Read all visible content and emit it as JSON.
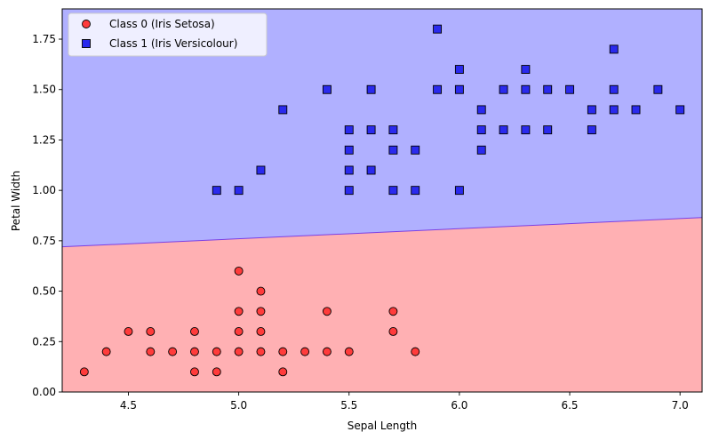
{
  "chart_data": {
    "type": "scatter",
    "title": "",
    "xlabel": "Sepal Length",
    "ylabel": "Petal Width",
    "xlim": [
      4.2,
      7.1
    ],
    "ylim": [
      0.0,
      1.9
    ],
    "xticks": [
      4.5,
      5.0,
      5.5,
      6.0,
      6.5,
      7.0
    ],
    "xtick_labels": [
      "4.5",
      "5.0",
      "5.5",
      "6.0",
      "6.5",
      "7.0"
    ],
    "yticks": [
      0.0,
      0.25,
      0.5,
      0.75,
      1.0,
      1.25,
      1.5,
      1.75
    ],
    "ytick_labels": [
      "0.00",
      "0.25",
      "0.50",
      "0.75",
      "1.00",
      "1.25",
      "1.50",
      "1.75"
    ],
    "legend_position": "top-left",
    "grid": false,
    "decision_boundary": {
      "line": [
        [
          4.2,
          0.72
        ],
        [
          7.1,
          0.865
        ]
      ],
      "region_above_class": "Class 1 (Iris Versicolour)",
      "region_below_class": "Class 0 (Iris Setosa)",
      "region_above_color": "#b0b0ff",
      "region_below_color": "#ffb0b3",
      "line_color": "#7b3fe4"
    },
    "series": [
      {
        "name": "Class 0 (Iris Setosa)",
        "marker": "circle",
        "color": "#ff3b3b",
        "edge_color": "#000000",
        "points": [
          [
            4.3,
            0.1
          ],
          [
            4.4,
            0.2
          ],
          [
            4.5,
            0.3
          ],
          [
            4.6,
            0.2
          ],
          [
            4.6,
            0.3
          ],
          [
            4.7,
            0.2
          ],
          [
            4.8,
            0.1
          ],
          [
            4.8,
            0.2
          ],
          [
            4.8,
            0.3
          ],
          [
            4.9,
            0.1
          ],
          [
            4.9,
            0.2
          ],
          [
            5.0,
            0.2
          ],
          [
            5.0,
            0.3
          ],
          [
            5.0,
            0.4
          ],
          [
            5.0,
            0.6
          ],
          [
            5.1,
            0.2
          ],
          [
            5.1,
            0.3
          ],
          [
            5.1,
            0.4
          ],
          [
            5.1,
            0.5
          ],
          [
            5.2,
            0.1
          ],
          [
            5.2,
            0.2
          ],
          [
            5.3,
            0.2
          ],
          [
            5.4,
            0.2
          ],
          [
            5.4,
            0.4
          ],
          [
            5.5,
            0.2
          ],
          [
            5.7,
            0.3
          ],
          [
            5.7,
            0.4
          ],
          [
            5.8,
            0.2
          ]
        ]
      },
      {
        "name": "Class 1 (Iris Versicolour)",
        "marker": "square",
        "color": "#2a2aee",
        "edge_color": "#000000",
        "points": [
          [
            4.9,
            1.0
          ],
          [
            5.0,
            1.0
          ],
          [
            5.1,
            1.1
          ],
          [
            5.2,
            1.4
          ],
          [
            5.4,
            1.5
          ],
          [
            5.5,
            1.0
          ],
          [
            5.5,
            1.1
          ],
          [
            5.5,
            1.2
          ],
          [
            5.5,
            1.3
          ],
          [
            5.6,
            1.1
          ],
          [
            5.6,
            1.3
          ],
          [
            5.6,
            1.5
          ],
          [
            5.7,
            1.0
          ],
          [
            5.7,
            1.2
          ],
          [
            5.7,
            1.3
          ],
          [
            5.8,
            1.0
          ],
          [
            5.8,
            1.2
          ],
          [
            5.9,
            1.5
          ],
          [
            5.9,
            1.8
          ],
          [
            6.0,
            1.0
          ],
          [
            6.0,
            1.5
          ],
          [
            6.0,
            1.6
          ],
          [
            6.1,
            1.2
          ],
          [
            6.1,
            1.3
          ],
          [
            6.1,
            1.4
          ],
          [
            6.2,
            1.3
          ],
          [
            6.2,
            1.5
          ],
          [
            6.3,
            1.3
          ],
          [
            6.3,
            1.5
          ],
          [
            6.3,
            1.6
          ],
          [
            6.4,
            1.3
          ],
          [
            6.4,
            1.5
          ],
          [
            6.5,
            1.5
          ],
          [
            6.6,
            1.3
          ],
          [
            6.6,
            1.4
          ],
          [
            6.7,
            1.4
          ],
          [
            6.7,
            1.5
          ],
          [
            6.7,
            1.7
          ],
          [
            6.8,
            1.4
          ],
          [
            6.9,
            1.5
          ],
          [
            7.0,
            1.4
          ]
        ]
      }
    ]
  }
}
